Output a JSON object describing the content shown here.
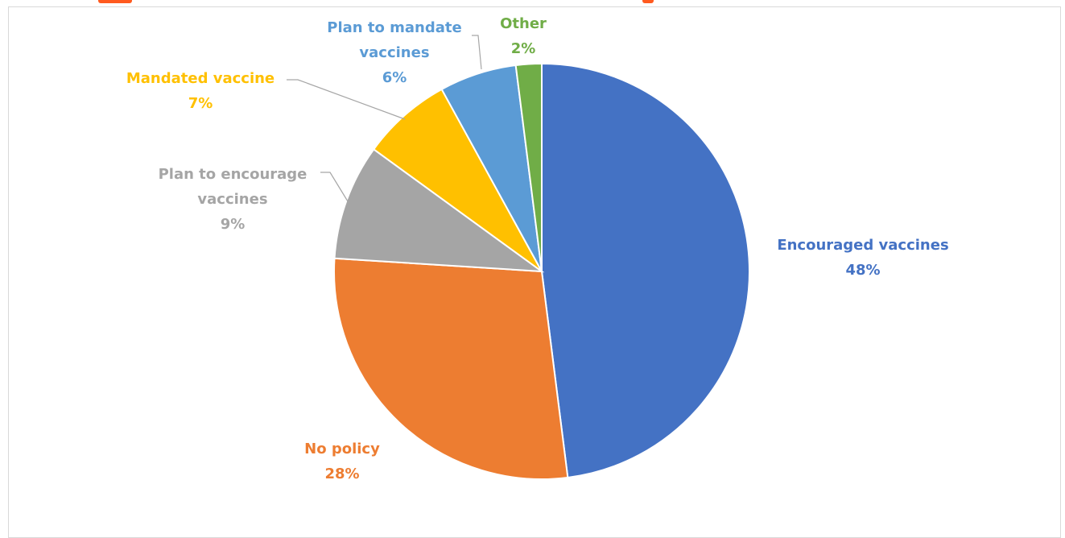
{
  "chart_data": {
    "type": "pie",
    "series": [
      {
        "name": "Encouraged vaccines",
        "value": 48,
        "label": "48%",
        "color": "#4472c4"
      },
      {
        "name": "No policy",
        "value": 28,
        "label": "28%",
        "color": "#ed7d31"
      },
      {
        "name": "Plan to encourage vaccines",
        "value": 9,
        "label": "9%",
        "color": "#a5a5a5"
      },
      {
        "name": "Mandated vaccine",
        "value": 7,
        "label": "7%",
        "color": "#ffc000"
      },
      {
        "name": "Plan to mandate vaccines",
        "value": 6,
        "label": "6%",
        "color": "#5b9bd5"
      },
      {
        "name": "Other",
        "value": 2,
        "label": "2%",
        "color": "#70ad47"
      }
    ],
    "start_angle_deg": 0,
    "direction": "clockwise"
  }
}
